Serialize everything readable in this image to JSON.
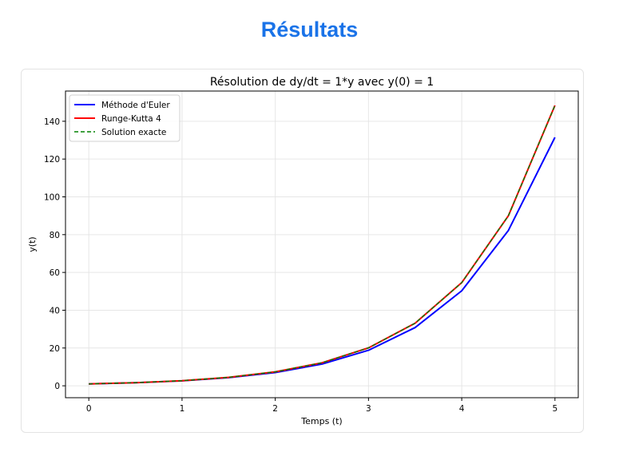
{
  "page": {
    "heading": "Résultats"
  },
  "colors": {
    "heading": "#1a73e8",
    "euler": "#0000ff",
    "rk4": "#ff0000",
    "exact": "#008000"
  },
  "chart_data": {
    "type": "line",
    "title": "Résolution de dy/dt = 1*y avec y(0) = 1",
    "xlabel": "Temps (t)",
    "ylabel": "y(t)",
    "xlim": [
      -0.25,
      5.25
    ],
    "ylim": [
      -6.3,
      156
    ],
    "x_ticks": [
      0,
      1,
      2,
      3,
      4,
      5
    ],
    "y_ticks": [
      0,
      20,
      40,
      60,
      80,
      100,
      120,
      140
    ],
    "grid": true,
    "legend": "top-left",
    "x": [
      0,
      0.5,
      1,
      1.5,
      2,
      2.5,
      3,
      3.5,
      4,
      4.5,
      5
    ],
    "series": [
      {
        "name": "Méthode d'Euler",
        "color": "#0000ff",
        "style": "solid",
        "values": [
          1.0,
          1.6,
          2.6,
          4.3,
          7.0,
          11.5,
          18.8,
          30.8,
          50.3,
          82.2,
          131.5
        ]
      },
      {
        "name": "Runge-Kutta 4",
        "color": "#ff0000",
        "style": "solid",
        "values": [
          1.0,
          1.65,
          2.72,
          4.48,
          7.39,
          12.18,
          20.09,
          33.12,
          54.6,
          90.0,
          148.4
        ]
      },
      {
        "name": "Solution exacte",
        "color": "#008000",
        "style": "dashed",
        "values": [
          1.0,
          1.65,
          2.72,
          4.48,
          7.39,
          12.18,
          20.09,
          33.12,
          54.6,
          90.02,
          148.41
        ]
      }
    ]
  }
}
